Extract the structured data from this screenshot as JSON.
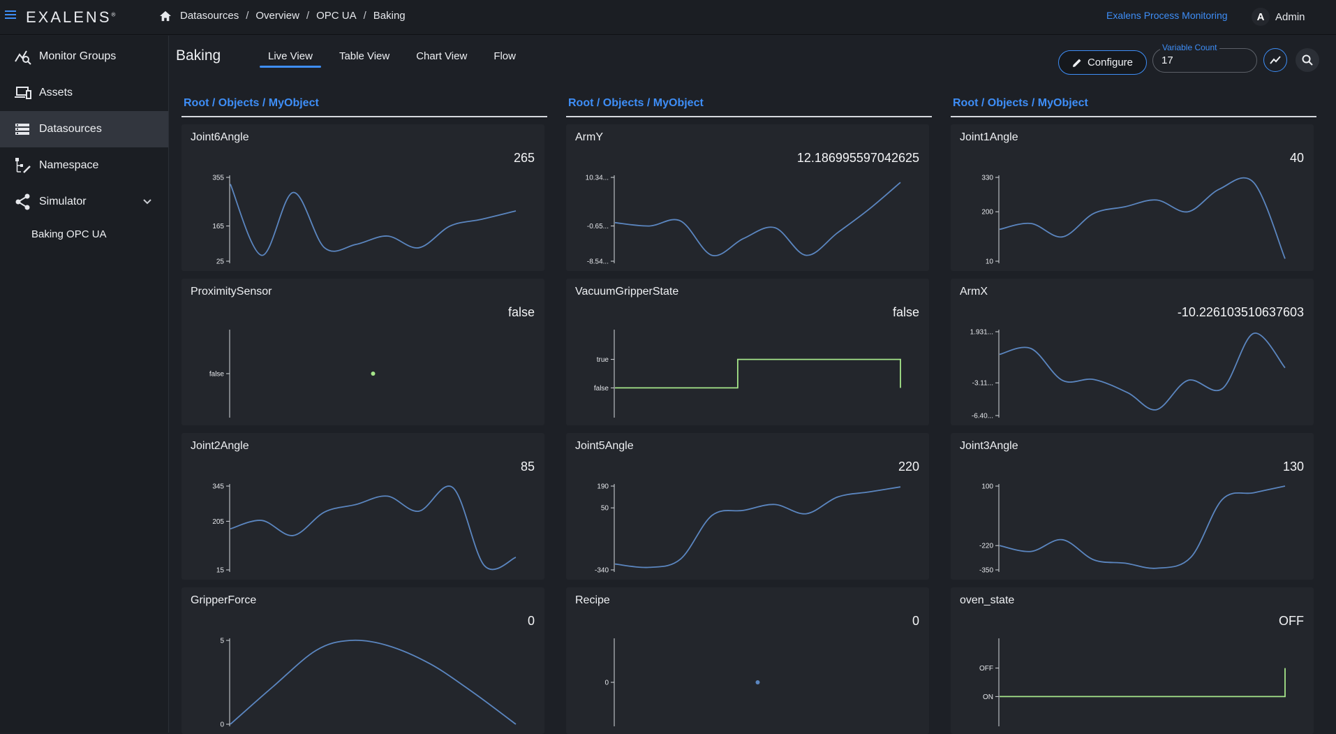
{
  "app": {
    "logo": "EXALENS",
    "logo_mark": "®",
    "app_link": "Exalens Process Monitoring",
    "user_initial": "A",
    "user_name": "Admin"
  },
  "breadcrumb": [
    "Datasources",
    "Overview",
    "OPC UA",
    "Baking"
  ],
  "sidebar": {
    "items": [
      {
        "label": "Monitor Groups",
        "icon": "monitor-groups-icon"
      },
      {
        "label": "Assets",
        "icon": "assets-icon"
      },
      {
        "label": "Datasources",
        "icon": "datasources-icon",
        "active": true
      },
      {
        "label": "Namespace",
        "icon": "namespace-icon"
      },
      {
        "label": "Simulator",
        "icon": "simulator-icon",
        "expandable": true
      }
    ],
    "sub_items": [
      "Baking OPC UA"
    ]
  },
  "header": {
    "title": "Baking",
    "tabs": [
      {
        "label": "Live View",
        "active": true
      },
      {
        "label": "Table View"
      },
      {
        "label": "Chart View"
      },
      {
        "label": "Flow"
      }
    ],
    "configure_label": "Configure",
    "variable_count_label": "Variable Count",
    "variable_count_value": "17"
  },
  "columns": [
    {
      "path": "Root / Objects / MyObject"
    },
    {
      "path": "Root / Objects / MyObject"
    },
    {
      "path": "Root / Objects / MyObject"
    }
  ],
  "colors": {
    "accent": "#3e8ef7",
    "line": "#5b86c0",
    "bool_line": "#a6e68a"
  },
  "cards": [
    {
      "name": "Joint6Angle",
      "value": "265",
      "type": "line",
      "ticks": [
        "355",
        "165",
        "25"
      ],
      "tick_pos": [
        0,
        0.58,
        1
      ],
      "points": [
        [
          0,
          0.08
        ],
        [
          0.11,
          0.93
        ],
        [
          0.22,
          0.18
        ],
        [
          0.33,
          0.84
        ],
        [
          0.44,
          0.8
        ],
        [
          0.55,
          0.7
        ],
        [
          0.66,
          0.84
        ],
        [
          0.77,
          0.58
        ],
        [
          0.88,
          0.5
        ],
        [
          1,
          0.4
        ]
      ]
    },
    {
      "name": "ArmY",
      "value": "12.186995597042625",
      "type": "line",
      "ticks": [
        "10.34...",
        "-0.65...",
        "-8.54..."
      ],
      "tick_pos": [
        0,
        0.58,
        1
      ],
      "points": [
        [
          0,
          0.54
        ],
        [
          0.12,
          0.58
        ],
        [
          0.23,
          0.52
        ],
        [
          0.34,
          0.93
        ],
        [
          0.45,
          0.73
        ],
        [
          0.56,
          0.6
        ],
        [
          0.67,
          0.93
        ],
        [
          0.78,
          0.66
        ],
        [
          0.89,
          0.38
        ],
        [
          1,
          0.06
        ]
      ]
    },
    {
      "name": "Joint1Angle",
      "value": "40",
      "type": "line",
      "ticks": [
        "330",
        "200",
        "10"
      ],
      "tick_pos": [
        0,
        0.41,
        1
      ],
      "points": [
        [
          0,
          0.62
        ],
        [
          0.11,
          0.55
        ],
        [
          0.22,
          0.71
        ],
        [
          0.33,
          0.43
        ],
        [
          0.44,
          0.35
        ],
        [
          0.55,
          0.27
        ],
        [
          0.66,
          0.41
        ],
        [
          0.77,
          0.14
        ],
        [
          0.89,
          0.06
        ],
        [
          1,
          0.97
        ]
      ]
    },
    {
      "name": "ProximitySensor",
      "value": "false",
      "type": "dot",
      "ticks": [
        "false"
      ],
      "tick_pos": [
        0.5
      ],
      "dot": [
        0.5,
        0.5
      ],
      "dot_color": "#a6e68a"
    },
    {
      "name": "VacuumGripperState",
      "value": "false",
      "type": "step",
      "ticks": [
        "true",
        "false"
      ],
      "tick_pos": [
        0.33,
        0.67
      ],
      "steps": [
        [
          0,
          0.67
        ],
        [
          0.43,
          0.67
        ],
        [
          0.43,
          0.33
        ],
        [
          1,
          0.33
        ],
        [
          1,
          0.67
        ]
      ]
    },
    {
      "name": "ArmX",
      "value": "-10.226103510637603",
      "type": "line",
      "ticks": [
        "1.931...",
        "-3.11...",
        "-6.40..."
      ],
      "tick_pos": [
        0,
        0.61,
        1
      ],
      "points": [
        [
          0,
          0.27
        ],
        [
          0.11,
          0.2
        ],
        [
          0.22,
          0.58
        ],
        [
          0.33,
          0.57
        ],
        [
          0.45,
          0.73
        ],
        [
          0.55,
          0.93
        ],
        [
          0.66,
          0.58
        ],
        [
          0.78,
          0.68
        ],
        [
          0.89,
          0.02
        ],
        [
          1,
          0.43
        ]
      ]
    },
    {
      "name": "Joint2Angle",
      "value": "85",
      "type": "line",
      "ticks": [
        "345",
        "205",
        "15"
      ],
      "tick_pos": [
        0,
        0.42,
        1
      ],
      "points": [
        [
          0,
          0.51
        ],
        [
          0.11,
          0.41
        ],
        [
          0.22,
          0.59
        ],
        [
          0.33,
          0.31
        ],
        [
          0.44,
          0.22
        ],
        [
          0.55,
          0.12
        ],
        [
          0.66,
          0.3
        ],
        [
          0.78,
          0.02
        ],
        [
          0.89,
          0.95
        ],
        [
          1,
          0.85
        ]
      ]
    },
    {
      "name": "Joint5Angle",
      "value": "220",
      "type": "line",
      "ticks": [
        "190",
        "50",
        "-340"
      ],
      "tick_pos": [
        0,
        0.26,
        1
      ],
      "points": [
        [
          0,
          0.93
        ],
        [
          0.12,
          0.97
        ],
        [
          0.23,
          0.87
        ],
        [
          0.34,
          0.35
        ],
        [
          0.45,
          0.29
        ],
        [
          0.56,
          0.22
        ],
        [
          0.67,
          0.33
        ],
        [
          0.78,
          0.13
        ],
        [
          0.89,
          0.07
        ],
        [
          1,
          0.01
        ]
      ]
    },
    {
      "name": "Joint3Angle",
      "value": "130",
      "type": "line",
      "ticks": [
        "100",
        "-220",
        "-350"
      ],
      "tick_pos": [
        0,
        0.71,
        1
      ],
      "points": [
        [
          0,
          0.71
        ],
        [
          0.11,
          0.78
        ],
        [
          0.22,
          0.64
        ],
        [
          0.33,
          0.88
        ],
        [
          0.44,
          0.92
        ],
        [
          0.55,
          0.98
        ],
        [
          0.67,
          0.85
        ],
        [
          0.78,
          0.16
        ],
        [
          0.89,
          0.08
        ],
        [
          1,
          0.0
        ]
      ]
    },
    {
      "name": "GripperForce",
      "value": "0",
      "type": "line",
      "ticks": [
        "5",
        "0"
      ],
      "tick_pos": [
        0,
        1
      ],
      "points": [
        [
          0,
          1.0
        ],
        [
          0.15,
          0.55
        ],
        [
          0.3,
          0.12
        ],
        [
          0.42,
          0.0
        ],
        [
          0.55,
          0.06
        ],
        [
          0.7,
          0.28
        ],
        [
          0.85,
          0.62
        ],
        [
          1,
          1.0
        ]
      ]
    },
    {
      "name": "Recipe",
      "value": "0",
      "type": "dot",
      "ticks": [
        "0"
      ],
      "tick_pos": [
        0.5
      ],
      "dot": [
        0.5,
        0.5
      ],
      "dot_color": "#5b86c0"
    },
    {
      "name": "oven_state",
      "value": "OFF",
      "type": "step",
      "ticks": [
        "OFF",
        "ON"
      ],
      "tick_pos": [
        0.33,
        0.67
      ],
      "steps": [
        [
          0,
          0.67
        ],
        [
          1,
          0.67
        ],
        [
          1,
          0.33
        ]
      ]
    }
  ]
}
